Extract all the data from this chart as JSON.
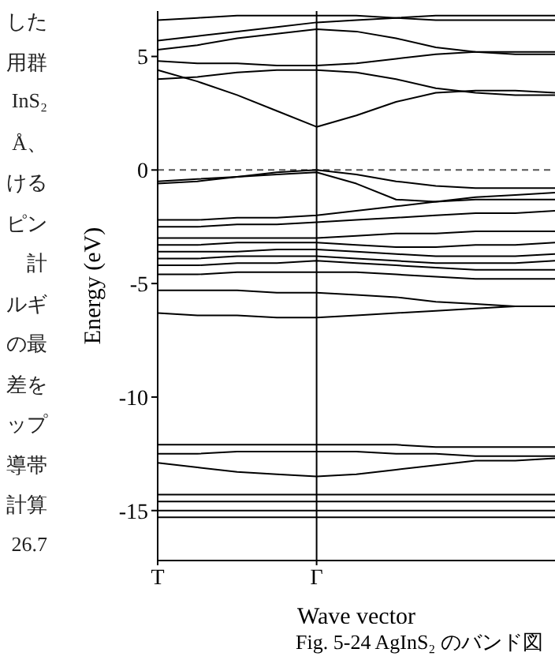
{
  "chart_data": {
    "type": "line",
    "title": "Fig. 5-24 AgInS₂ のバンド図",
    "xlabel": "Wave vector",
    "ylabel": "Energy (eV)",
    "annotations": [
      "した",
      "用群",
      "InS₂",
      "Å、",
      "ける",
      "ピン",
      "計",
      "ルギ",
      "の最",
      "差を",
      "ップ",
      "導帯",
      "計算",
      "26.7"
    ],
    "marker": "none",
    "line_style": "solid",
    "categories": [
      "T",
      null,
      null,
      null,
      "Γ",
      null,
      null,
      null,
      null,
      null,
      null
    ],
    "ylim": [
      -17.2,
      7
    ],
    "yticks": [
      5,
      0,
      -5,
      -10,
      -15
    ],
    "ref_lines": [
      {
        "axis": "x",
        "value": "Γ",
        "color": "#000000",
        "line_style": "solid"
      },
      {
        "axis": "y",
        "value": 0,
        "color": "#555555",
        "line_style": "dashed"
      }
    ],
    "series": [
      {
        "color": "#000000",
        "values": [
          4.4,
          3.9,
          3.3,
          2.6,
          1.9,
          2.4,
          3.0,
          3.4,
          3.5,
          3.5,
          3.4
        ]
      },
      {
        "color": "#000000",
        "values": [
          4.0,
          4.1,
          4.3,
          4.4,
          4.4,
          4.3,
          4.0,
          3.6,
          3.4,
          3.3,
          3.3
        ]
      },
      {
        "color": "#000000",
        "values": [
          4.8,
          4.7,
          4.7,
          4.6,
          4.6,
          4.7,
          4.9,
          5.1,
          5.2,
          5.2,
          5.2
        ]
      },
      {
        "color": "#000000",
        "values": [
          5.3,
          5.5,
          5.8,
          6.0,
          6.2,
          6.1,
          5.8,
          5.4,
          5.2,
          5.1,
          5.1
        ]
      },
      {
        "color": "#000000",
        "values": [
          5.7,
          5.9,
          6.1,
          6.3,
          6.5,
          6.6,
          6.7,
          6.8,
          6.8,
          6.8,
          6.8
        ]
      },
      {
        "color": "#000000",
        "values": [
          6.6,
          6.7,
          6.8,
          6.8,
          6.8,
          6.8,
          6.7,
          6.6,
          6.6,
          6.6,
          6.6
        ]
      },
      {
        "color": "#000000",
        "values": [
          -0.6,
          -0.5,
          -0.3,
          -0.1,
          0,
          -0.2,
          -0.5,
          -0.7,
          -0.8,
          -0.8,
          -0.8
        ]
      },
      {
        "color": "#000000",
        "values": [
          -0.5,
          -0.4,
          -0.3,
          -0.2,
          -0.1,
          -0.6,
          -1.3,
          -1.4,
          -1.3,
          -1.3,
          -1.3
        ]
      },
      {
        "color": "#000000",
        "values": [
          -2.2,
          -2.2,
          -2.1,
          -2.1,
          -2.0,
          -1.8,
          -1.6,
          -1.4,
          -1.2,
          -1.1,
          -1.0
        ]
      },
      {
        "color": "#000000",
        "values": [
          -2.5,
          -2.5,
          -2.4,
          -2.4,
          -2.3,
          -2.2,
          -2.1,
          -2.0,
          -1.9,
          -1.9,
          -1.8
        ]
      },
      {
        "color": "#000000",
        "values": [
          -3.0,
          -3.0,
          -3.0,
          -3.0,
          -3.0,
          -2.9,
          -2.8,
          -2.8,
          -2.7,
          -2.7,
          -2.7
        ]
      },
      {
        "color": "#000000",
        "values": [
          -3.3,
          -3.3,
          -3.2,
          -3.2,
          -3.2,
          -3.3,
          -3.4,
          -3.4,
          -3.3,
          -3.3,
          -3.2
        ]
      },
      {
        "color": "#000000",
        "values": [
          -3.6,
          -3.6,
          -3.6,
          -3.5,
          -3.5,
          -3.6,
          -3.7,
          -3.8,
          -3.8,
          -3.8,
          -3.7
        ]
      },
      {
        "color": "#000000",
        "values": [
          -3.9,
          -3.9,
          -3.8,
          -3.8,
          -3.8,
          -3.9,
          -4.0,
          -4.1,
          -4.1,
          -4.1,
          -4.0
        ]
      },
      {
        "color": "#000000",
        "values": [
          -4.2,
          -4.2,
          -4.1,
          -4.1,
          -4.0,
          -4.1,
          -4.2,
          -4.3,
          -4.4,
          -4.4,
          -4.4
        ]
      },
      {
        "color": "#000000",
        "values": [
          -4.6,
          -4.6,
          -4.5,
          -4.5,
          -4.5,
          -4.5,
          -4.6,
          -4.7,
          -4.8,
          -4.8,
          -4.8
        ]
      },
      {
        "color": "#000000",
        "values": [
          -5.3,
          -5.3,
          -5.3,
          -5.4,
          -5.4,
          -5.5,
          -5.6,
          -5.8,
          -5.9,
          -6.0,
          -6.0
        ]
      },
      {
        "color": "#000000",
        "values": [
          -6.3,
          -6.4,
          -6.4,
          -6.5,
          -6.5,
          -6.4,
          -6.3,
          -6.2,
          -6.1,
          -6.0,
          -6.0
        ]
      },
      {
        "color": "#000000",
        "values": [
          -12.1,
          -12.1,
          -12.1,
          -12.1,
          -12.1,
          -12.1,
          -12.1,
          -12.2,
          -12.2,
          -12.2,
          -12.2
        ]
      },
      {
        "color": "#000000",
        "values": [
          -12.5,
          -12.5,
          -12.4,
          -12.4,
          -12.4,
          -12.4,
          -12.5,
          -12.5,
          -12.6,
          -12.6,
          -12.6
        ]
      },
      {
        "color": "#000000",
        "values": [
          -12.9,
          -13.1,
          -13.3,
          -13.4,
          -13.5,
          -13.4,
          -13.2,
          -13.0,
          -12.8,
          -12.8,
          -12.7
        ]
      },
      {
        "color": "#000000",
        "values": [
          -14.3,
          -14.3,
          -14.3,
          -14.3,
          -14.3,
          -14.3,
          -14.3,
          -14.3,
          -14.3,
          -14.3,
          -14.3
        ]
      },
      {
        "color": "#000000",
        "values": [
          -14.6,
          -14.6,
          -14.6,
          -14.6,
          -14.6,
          -14.6,
          -14.6,
          -14.6,
          -14.6,
          -14.6,
          -14.6
        ]
      },
      {
        "color": "#000000",
        "values": [
          -15.0,
          -15.0,
          -15.0,
          -15.0,
          -15.0,
          -15.0,
          -15.0,
          -15.0,
          -15.0,
          -15.0,
          -15.0
        ]
      },
      {
        "color": "#000000",
        "values": [
          -15.3,
          -15.3,
          -15.3,
          -15.3,
          -15.3,
          -15.3,
          -15.3,
          -15.3,
          -15.3,
          -15.3,
          -15.3
        ]
      }
    ]
  }
}
